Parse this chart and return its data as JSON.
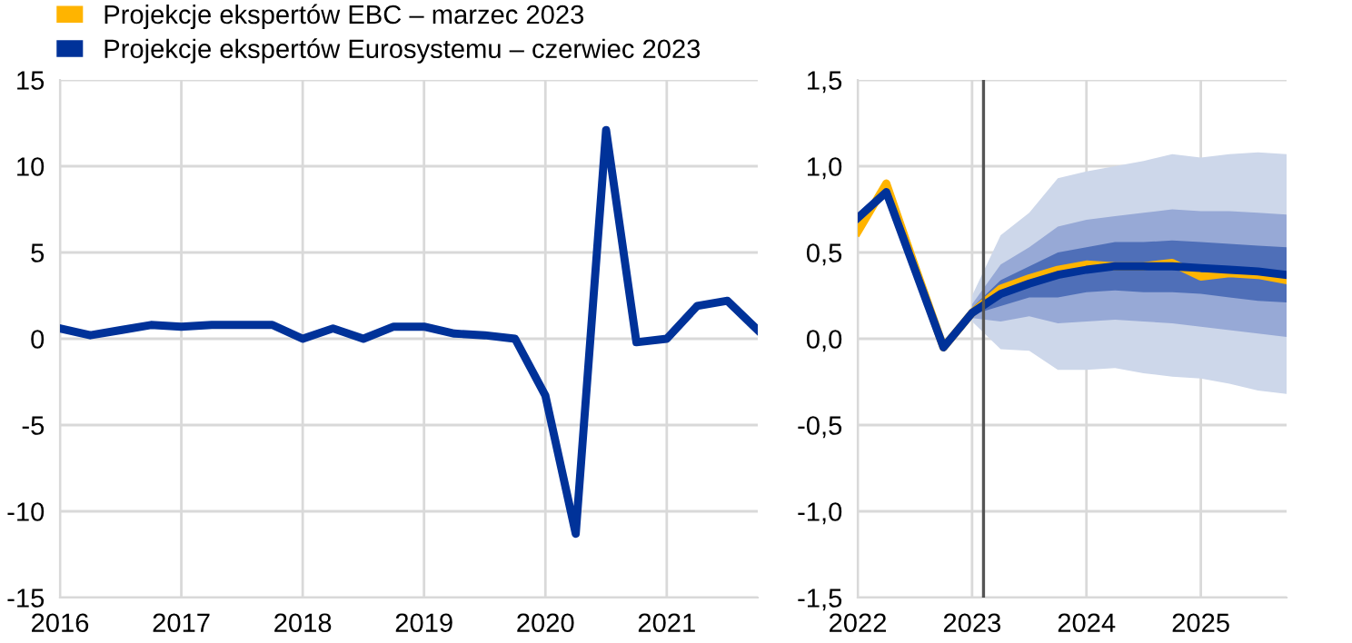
{
  "chart_data": [
    {
      "type": "line",
      "xlim": [
        2016,
        2021.75
      ],
      "ylim": [
        -15,
        15
      ],
      "yticks": [
        -15,
        -10,
        -5,
        0,
        5,
        10,
        15
      ],
      "xticks": [
        2016,
        2017,
        2018,
        2019,
        2020,
        2021
      ],
      "grid": true,
      "x": [
        2016,
        2016.25,
        2016.5,
        2016.75,
        2017,
        2017.25,
        2017.5,
        2017.75,
        2018,
        2018.25,
        2018.5,
        2018.75,
        2019,
        2019.25,
        2019.5,
        2019.75,
        2020,
        2020.25,
        2020.5,
        2020.75,
        2021,
        2021.25,
        2021.5,
        2021.75
      ],
      "series": [
        {
          "color": "#003299",
          "values": [
            0.6,
            0.2,
            0.5,
            0.8,
            0.7,
            0.8,
            0.8,
            0.8,
            0.0,
            0.6,
            0.0,
            0.7,
            0.7,
            0.3,
            0.2,
            0.0,
            -3.3,
            -11.3,
            12.1,
            -0.2,
            0.0,
            1.9,
            2.2,
            0.5
          ]
        }
      ]
    },
    {
      "type": "line",
      "xlim": [
        2022,
        2025.75
      ],
      "ylim": [
        -1.5,
        1.5
      ],
      "yticks": [
        {
          "value": -1.5,
          "label": "-1,5"
        },
        {
          "value": -1.0,
          "label": "-1,0"
        },
        {
          "value": -0.5,
          "label": "-0,5"
        },
        {
          "value": 0.0,
          "label": "0,0"
        },
        {
          "value": 0.5,
          "label": "0,5"
        },
        {
          "value": 1.0,
          "label": "1,0"
        },
        {
          "value": 1.5,
          "label": "1,5"
        }
      ],
      "xticks": [
        2022,
        2023,
        2024,
        2025
      ],
      "grid": true,
      "legend": "top left",
      "ref_lines": [
        {
          "axis": "x",
          "value": 2023.1,
          "color": "#555555"
        }
      ],
      "x": [
        2022,
        2022.25,
        2022.5,
        2022.75,
        2023,
        2023.25,
        2023.5,
        2023.75,
        2024,
        2024.25,
        2024.5,
        2024.75,
        2025,
        2025.25,
        2025.5,
        2025.75
      ],
      "series": [
        {
          "color": "#cdd7ea",
          "x": [
            2023,
            2023.25,
            2023.5,
            2023.75,
            2024,
            2024.25,
            2024.5,
            2024.75,
            2025,
            2025.25,
            2025.5,
            2025.75
          ],
          "values": [
            null,
            null,
            null,
            null,
            null,
            null,
            null,
            null,
            null,
            null,
            null,
            null
          ],
          "upper": [
            0.25,
            0.6,
            0.73,
            0.93,
            0.97,
            1.0,
            1.03,
            1.07,
            1.05,
            1.07,
            1.08,
            1.07
          ],
          "lower": [
            0.1,
            -0.06,
            -0.07,
            -0.18,
            -0.18,
            -0.17,
            -0.2,
            -0.22,
            -0.23,
            -0.26,
            -0.3,
            -0.32
          ]
        },
        {
          "color": "#97a9d6",
          "x": [
            2023,
            2023.25,
            2023.5,
            2023.75,
            2024,
            2024.25,
            2024.5,
            2024.75,
            2025,
            2025.25,
            2025.5,
            2025.75
          ],
          "values": [
            null,
            null,
            null,
            null,
            null,
            null,
            null,
            null,
            null,
            null,
            null,
            null
          ],
          "upper": [
            0.2,
            0.43,
            0.53,
            0.65,
            0.69,
            0.71,
            0.73,
            0.75,
            0.74,
            0.74,
            0.73,
            0.72
          ],
          "lower": [
            0.12,
            0.1,
            0.13,
            0.09,
            0.1,
            0.11,
            0.1,
            0.09,
            0.07,
            0.05,
            0.03,
            0.01
          ]
        },
        {
          "color": "#4f6fb8",
          "x": [
            2023,
            2023.25,
            2023.5,
            2023.75,
            2024,
            2024.25,
            2024.5,
            2024.75,
            2025,
            2025.25,
            2025.5,
            2025.75
          ],
          "values": [
            null,
            null,
            null,
            null,
            null,
            null,
            null,
            null,
            null,
            null,
            null,
            null
          ],
          "upper": [
            0.18,
            0.34,
            0.42,
            0.5,
            0.53,
            0.56,
            0.56,
            0.57,
            0.56,
            0.55,
            0.54,
            0.53
          ],
          "lower": [
            0.14,
            0.19,
            0.24,
            0.24,
            0.27,
            0.28,
            0.27,
            0.27,
            0.26,
            0.24,
            0.22,
            0.21
          ]
        },
        {
          "name": "Projekcje ekspertów EBC – marzec 2023",
          "color": "#ffb400",
          "values": [
            0.62,
            0.9,
            0.42,
            -0.05,
            0.15,
            0.29,
            0.35,
            0.4,
            0.43,
            0.42,
            0.42,
            0.44,
            0.36,
            0.38,
            0.37,
            0.34
          ]
        },
        {
          "name": "Projekcje ekspertów Eurosystemu – czerwiec 2023",
          "color": "#003299",
          "values": [
            0.7,
            0.85,
            0.4,
            -0.05,
            0.15,
            0.26,
            0.32,
            0.37,
            0.4,
            0.42,
            0.42,
            0.42,
            0.41,
            0.4,
            0.39,
            0.37
          ]
        }
      ]
    }
  ]
}
